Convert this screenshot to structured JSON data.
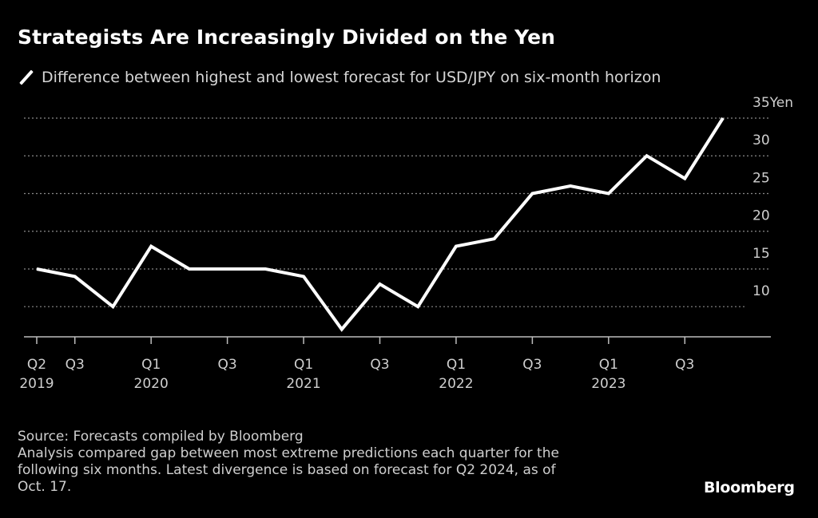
{
  "chart_data": {
    "type": "line",
    "title": "Strategists Are Increasingly Divided on the Yen",
    "legend": [
      {
        "name": "Difference between highest and lowest forecast for USD/JPY on six-month horizon",
        "color": "#ffffff"
      }
    ],
    "legend_placement": "top-left",
    "xlabel": "",
    "ylabel": "Yen",
    "ylim": [
      6,
      35
    ],
    "yticks": [
      10,
      15,
      20,
      25,
      30,
      35
    ],
    "ytick_labels": [
      "10",
      "15",
      "20",
      "25",
      "30",
      "35"
    ],
    "yunit_label": "Yen",
    "grid": true,
    "x": [
      "Q2 2019",
      "Q3 2019",
      "Q4 2019",
      "Q1 2020",
      "Q2 2020",
      "Q3 2020",
      "Q4 2020",
      "Q1 2021",
      "Q2 2021",
      "Q3 2021",
      "Q4 2021",
      "Q1 2022",
      "Q2 2022",
      "Q3 2022",
      "Q4 2022",
      "Q1 2023",
      "Q2 2023",
      "Q3 2023",
      "Q4 2023"
    ],
    "series": [
      {
        "name": "Difference between highest and lowest forecast for USD/JPY on six-month horizon",
        "values": [
          15,
          14,
          10,
          18,
          15,
          15,
          15,
          14,
          7,
          13,
          10,
          18,
          19,
          25,
          26,
          25,
          30,
          27,
          35
        ]
      }
    ],
    "xticks": [
      {
        "index": 0,
        "line1": "Q2",
        "line2": "2019"
      },
      {
        "index": 1,
        "line1": "Q3",
        "line2": ""
      },
      {
        "index": 3,
        "line1": "Q1",
        "line2": "2020"
      },
      {
        "index": 5,
        "line1": "Q3",
        "line2": ""
      },
      {
        "index": 7,
        "line1": "Q1",
        "line2": "2021"
      },
      {
        "index": 9,
        "line1": "Q3",
        "line2": ""
      },
      {
        "index": 11,
        "line1": "Q1",
        "line2": "2022"
      },
      {
        "index": 13,
        "line1": "Q3",
        "line2": ""
      },
      {
        "index": 15,
        "line1": "Q1",
        "line2": "2023"
      },
      {
        "index": 17,
        "line1": "Q3",
        "line2": ""
      }
    ]
  },
  "header": {
    "title": "Strategists Are Increasingly Divided on the Yen",
    "legend_label": "Difference between highest and lowest forecast for USD/JPY on six-month horizon"
  },
  "footer": {
    "source": "Source: Forecasts compiled by Bloomberg",
    "note_lines": [
      "Analysis compared gap between most extreme predictions each quarter for the",
      "following six months. Latest divergence is based on forecast for Q2 2024, as of",
      "Oct. 17."
    ],
    "brand": "Bloomberg"
  }
}
